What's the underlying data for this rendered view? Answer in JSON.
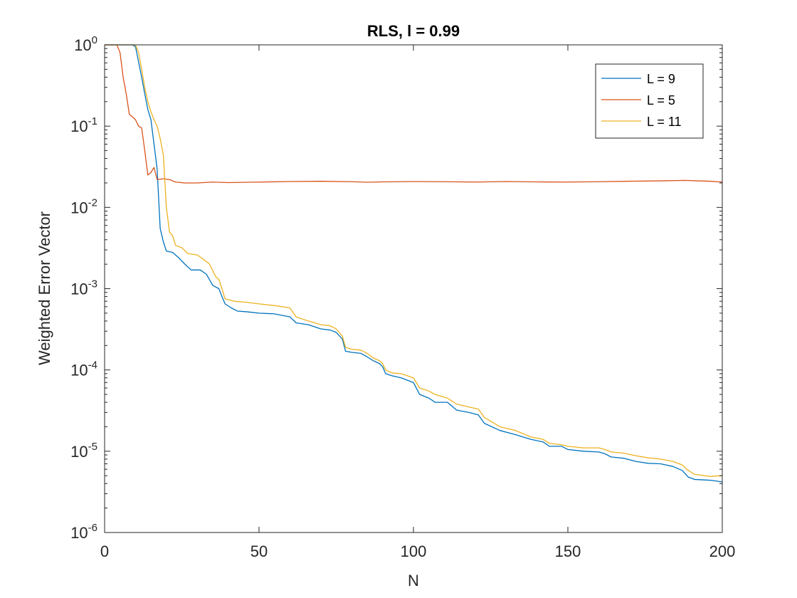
{
  "chart_data": {
    "type": "line",
    "title": "RLS, l = 0.99",
    "xlabel": "N",
    "ylabel": "Weighted Error Vector",
    "xlim": [
      0,
      200
    ],
    "ylim": [
      1e-06,
      1
    ],
    "yscale": "log",
    "grid": false,
    "legend_position": "top-right",
    "x_ticks": [
      {
        "value": 0,
        "label": "0"
      },
      {
        "value": 50,
        "label": "50"
      },
      {
        "value": 100,
        "label": "100"
      },
      {
        "value": 150,
        "label": "150"
      },
      {
        "value": 200,
        "label": "200"
      }
    ],
    "y_ticks": [
      {
        "value": 1,
        "base": "10",
        "exp": "0"
      },
      {
        "value": 0.1,
        "base": "10",
        "exp": "-1"
      },
      {
        "value": 0.01,
        "base": "10",
        "exp": "-2"
      },
      {
        "value": 0.001,
        "base": "10",
        "exp": "-3"
      },
      {
        "value": 0.0001,
        "base": "10",
        "exp": "-4"
      },
      {
        "value": 1e-05,
        "base": "10",
        "exp": "-5"
      },
      {
        "value": 1e-06,
        "base": "10",
        "exp": "-6"
      }
    ],
    "series": [
      {
        "name": "L = 9",
        "color": "#0072BD",
        "points": [
          [
            0,
            1
          ],
          [
            9,
            1
          ],
          [
            10,
            0.95
          ],
          [
            12,
            0.4
          ],
          [
            13,
            0.25
          ],
          [
            14,
            0.16
          ],
          [
            15,
            0.12
          ],
          [
            16,
            0.06
          ],
          [
            17,
            0.03
          ],
          [
            18,
            0.0055
          ],
          [
            19,
            0.0038
          ],
          [
            20,
            0.0029
          ],
          [
            22,
            0.0028
          ],
          [
            24,
            0.0024
          ],
          [
            26,
            0.002
          ],
          [
            28,
            0.0017
          ],
          [
            31,
            0.0017
          ],
          [
            33,
            0.0015
          ],
          [
            35,
            0.0011
          ],
          [
            37,
            0.001
          ],
          [
            38,
            0.0008
          ],
          [
            39,
            0.00065
          ],
          [
            41,
            0.00058
          ],
          [
            43,
            0.00053
          ],
          [
            46,
            0.00052
          ],
          [
            50,
            0.0005
          ],
          [
            55,
            0.00049
          ],
          [
            60,
            0.00045
          ],
          [
            62,
            0.00038
          ],
          [
            66,
            0.00036
          ],
          [
            70,
            0.00032
          ],
          [
            73,
            0.00031
          ],
          [
            75,
            0.00029
          ],
          [
            77,
            0.00024
          ],
          [
            78,
            0.00017
          ],
          [
            80,
            0.000165
          ],
          [
            83,
            0.00016
          ],
          [
            85,
            0.000145
          ],
          [
            87,
            0.00013
          ],
          [
            89,
            0.00012
          ],
          [
            90,
            0.00011
          ],
          [
            91,
            9e-05
          ],
          [
            93,
            8.5e-05
          ],
          [
            96,
            8e-05
          ],
          [
            100,
            7e-05
          ],
          [
            102,
            5e-05
          ],
          [
            105,
            4.5e-05
          ],
          [
            107,
            4e-05
          ],
          [
            111,
            4e-05
          ],
          [
            114,
            3.2e-05
          ],
          [
            118,
            3e-05
          ],
          [
            121,
            2.8e-05
          ],
          [
            123,
            2.2e-05
          ],
          [
            128,
            1.8e-05
          ],
          [
            133,
            1.6e-05
          ],
          [
            138,
            1.4e-05
          ],
          [
            142,
            1.3e-05
          ],
          [
            144,
            1.15e-05
          ],
          [
            148,
            1.15e-05
          ],
          [
            150,
            1.05e-05
          ],
          [
            155,
            1e-05
          ],
          [
            160,
            9.8e-06
          ],
          [
            162,
            9.3e-06
          ],
          [
            164,
            8.5e-06
          ],
          [
            168,
            8.2e-06
          ],
          [
            172,
            7.5e-06
          ],
          [
            176,
            7.1e-06
          ],
          [
            180,
            7e-06
          ],
          [
            184,
            6.5e-06
          ],
          [
            187,
            5.8e-06
          ],
          [
            189,
            4.8e-06
          ],
          [
            191,
            4.5e-06
          ],
          [
            196,
            4.4e-06
          ],
          [
            200,
            4.2e-06
          ]
        ]
      },
      {
        "name": "L = 5",
        "color": "#D95319",
        "points": [
          [
            0,
            1
          ],
          [
            4,
            1
          ],
          [
            5,
            0.8
          ],
          [
            6,
            0.4
          ],
          [
            7,
            0.25
          ],
          [
            8,
            0.14
          ],
          [
            9,
            0.13
          ],
          [
            10,
            0.12
          ],
          [
            11,
            0.1
          ],
          [
            12,
            0.095
          ],
          [
            13,
            0.05
          ],
          [
            14,
            0.025
          ],
          [
            15,
            0.027
          ],
          [
            16,
            0.031
          ],
          [
            17,
            0.022
          ],
          [
            19,
            0.0225
          ],
          [
            21,
            0.022
          ],
          [
            23,
            0.0205
          ],
          [
            26,
            0.02
          ],
          [
            30,
            0.02
          ],
          [
            35,
            0.0205
          ],
          [
            40,
            0.0202
          ],
          [
            50,
            0.0205
          ],
          [
            60,
            0.0208
          ],
          [
            70,
            0.021
          ],
          [
            80,
            0.0207
          ],
          [
            85,
            0.0204
          ],
          [
            90,
            0.0206
          ],
          [
            100,
            0.0208
          ],
          [
            110,
            0.0207
          ],
          [
            120,
            0.0205
          ],
          [
            130,
            0.0208
          ],
          [
            140,
            0.0206
          ],
          [
            150,
            0.0205
          ],
          [
            160,
            0.0207
          ],
          [
            170,
            0.021
          ],
          [
            180,
            0.0212
          ],
          [
            188,
            0.0215
          ],
          [
            192,
            0.0212
          ],
          [
            196,
            0.021
          ],
          [
            200,
            0.0205
          ]
        ]
      },
      {
        "name": "L = 11",
        "color": "#EDB120",
        "points": [
          [
            0,
            1
          ],
          [
            10,
            1
          ],
          [
            11,
            0.8
          ],
          [
            12,
            0.5
          ],
          [
            13,
            0.3
          ],
          [
            14,
            0.2
          ],
          [
            15,
            0.15
          ],
          [
            16,
            0.12
          ],
          [
            17,
            0.1
          ],
          [
            18,
            0.07
          ],
          [
            19,
            0.045
          ],
          [
            20,
            0.01
          ],
          [
            21,
            0.005
          ],
          [
            22,
            0.0045
          ],
          [
            23,
            0.0034
          ],
          [
            25,
            0.0032
          ],
          [
            27,
            0.0027
          ],
          [
            30,
            0.0026
          ],
          [
            32,
            0.0023
          ],
          [
            34,
            0.002
          ],
          [
            36,
            0.0014
          ],
          [
            37,
            0.0013
          ],
          [
            38,
            0.001
          ],
          [
            39,
            0.00075
          ],
          [
            42,
            0.0007
          ],
          [
            46,
            0.00068
          ],
          [
            50,
            0.00065
          ],
          [
            55,
            0.00062
          ],
          [
            60,
            0.00058
          ],
          [
            62,
            0.00045
          ],
          [
            66,
            0.0004
          ],
          [
            70,
            0.00036
          ],
          [
            73,
            0.00035
          ],
          [
            75,
            0.00032
          ],
          [
            77,
            0.00026
          ],
          [
            78,
            0.00019
          ],
          [
            80,
            0.00018
          ],
          [
            83,
            0.000175
          ],
          [
            85,
            0.00016
          ],
          [
            87,
            0.00014
          ],
          [
            89,
            0.00013
          ],
          [
            90,
            0.00012
          ],
          [
            91,
            0.0001
          ],
          [
            93,
            9.2e-05
          ],
          [
            96,
            9e-05
          ],
          [
            100,
            8e-05
          ],
          [
            102,
            6e-05
          ],
          [
            105,
            5.5e-05
          ],
          [
            107,
            5e-05
          ],
          [
            111,
            4.5e-05
          ],
          [
            114,
            3.8e-05
          ],
          [
            118,
            3.5e-05
          ],
          [
            121,
            3.3e-05
          ],
          [
            123,
            2.6e-05
          ],
          [
            128,
            2e-05
          ],
          [
            133,
            1.8e-05
          ],
          [
            138,
            1.5e-05
          ],
          [
            142,
            1.4e-05
          ],
          [
            144,
            1.25e-05
          ],
          [
            148,
            1.2e-05
          ],
          [
            150,
            1.15e-05
          ],
          [
            155,
            1.1e-05
          ],
          [
            160,
            1.1e-05
          ],
          [
            162,
            1.05e-05
          ],
          [
            164,
            9.8e-06
          ],
          [
            168,
            9.5e-06
          ],
          [
            172,
            8.8e-06
          ],
          [
            176,
            8.3e-06
          ],
          [
            180,
            8e-06
          ],
          [
            184,
            7.5e-06
          ],
          [
            187,
            6.8e-06
          ],
          [
            189,
            5.8e-06
          ],
          [
            191,
            5.2e-06
          ],
          [
            196,
            4.9e-06
          ],
          [
            200,
            5e-06
          ]
        ]
      }
    ]
  }
}
